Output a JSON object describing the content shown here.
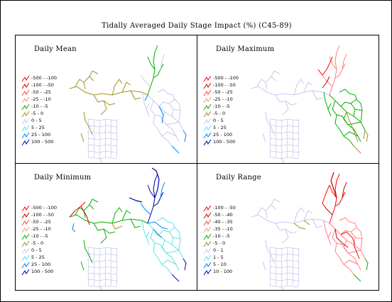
{
  "title": "Tidally Averaged Daily Stage Impact (%) (C45-89)",
  "colors": {
    "red": "#ff0000",
    "dark_red": "#c00000",
    "pink": "#ff8080",
    "green": "#00b000",
    "olive": "#a09020",
    "cyan": "#60e0e0",
    "blue": "#0080ff",
    "navy": "#0000a0",
    "lavender": "#c8c8ec"
  },
  "panels": [
    {
      "title": "Daily Mean",
      "legend": [
        {
          "label": "-500 - -100",
          "color": "#ff0000"
        },
        {
          "label": "-100 - -50",
          "color": "#c00000"
        },
        {
          "label": "-50 - -25",
          "color": "#ff4040"
        },
        {
          "label": "-25 - -10",
          "color": "#ff9090"
        },
        {
          "label": "-10 - -5",
          "color": "#00b000"
        },
        {
          "label": "-5 - 0",
          "color": "#a09020"
        },
        {
          "label": "0 - 5",
          "color": "#c8c8ec"
        },
        {
          "label": "5 - 25",
          "color": "#60e0e0"
        },
        {
          "label": "25 - 100",
          "color": "#0080ff"
        },
        {
          "label": "100 - 500",
          "color": "#0000a0"
        }
      ]
    },
    {
      "title": "Daily Maximum",
      "legend": [
        {
          "label": "-500 - -100",
          "color": "#ff0000"
        },
        {
          "label": "-100 - -50",
          "color": "#c00000"
        },
        {
          "label": "-50 - -25",
          "color": "#ff4040"
        },
        {
          "label": "-25 - -10",
          "color": "#ff9090"
        },
        {
          "label": "-10 - -5",
          "color": "#00b000"
        },
        {
          "label": "-5 - 0",
          "color": "#a09020"
        },
        {
          "label": "0 - 5",
          "color": "#c8c8ec"
        },
        {
          "label": "5 - 25",
          "color": "#60e0e0"
        },
        {
          "label": "25 - 100",
          "color": "#0080ff"
        },
        {
          "label": "100 - 500",
          "color": "#0000a0"
        }
      ]
    },
    {
      "title": "Daily Minimum",
      "legend": [
        {
          "label": "-500 - -100",
          "color": "#ff0000"
        },
        {
          "label": "-100 - -50",
          "color": "#c00000"
        },
        {
          "label": "-50 - -25",
          "color": "#ff4040"
        },
        {
          "label": "-25 - -10",
          "color": "#ff9090"
        },
        {
          "label": "-10 - -5",
          "color": "#00b000"
        },
        {
          "label": "-5 - 0",
          "color": "#a09020"
        },
        {
          "label": "0 - 5",
          "color": "#c8c8ec"
        },
        {
          "label": "5 - 25",
          "color": "#60e0e0"
        },
        {
          "label": "25 - 100",
          "color": "#0080ff"
        },
        {
          "label": "100 - 500",
          "color": "#0000a0"
        }
      ]
    },
    {
      "title": "Daily Range",
      "legend": [
        {
          "label": "-100 - -50",
          "color": "#ff0000"
        },
        {
          "label": "-50 - -40",
          "color": "#c00000"
        },
        {
          "label": "-40 - -35",
          "color": "#ff4040"
        },
        {
          "label": "-35 - -10",
          "color": "#ff9090"
        },
        {
          "label": "-10 - -5",
          "color": "#00b000"
        },
        {
          "label": "-5 - 0",
          "color": "#a09020"
        },
        {
          "label": "0 - 1",
          "color": "#c8c8ec"
        },
        {
          "label": "1 - 5",
          "color": "#60e0e0"
        },
        {
          "label": "5 - 10",
          "color": "#0080ff"
        },
        {
          "label": "10 - 100",
          "color": "#0000a0"
        }
      ]
    }
  ]
}
